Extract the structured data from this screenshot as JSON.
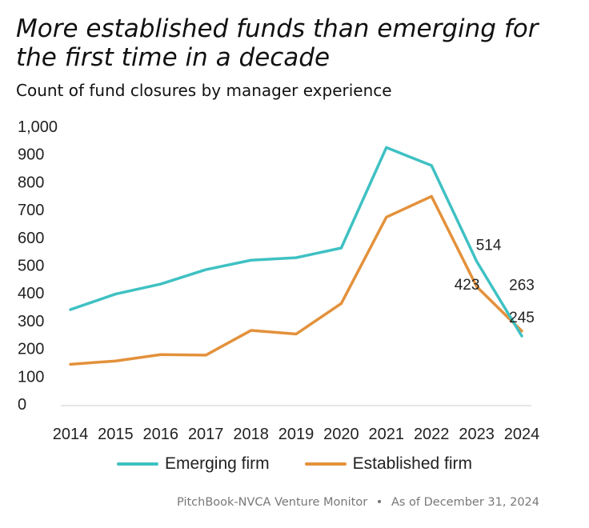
{
  "header": {
    "title": "More established funds than emerging for the first time in a decade",
    "subtitle": "Count of fund closures by manager experience"
  },
  "source": {
    "text": "PitchBook-NVCA Venture Monitor",
    "separator": "•",
    "date": "As of December 31, 2024"
  },
  "chart_data": {
    "type": "line",
    "title": "More established funds than emerging for the first time in a decade",
    "subtitle": "Count of fund closures by manager experience",
    "xlabel": "",
    "ylabel": "",
    "categories": [
      "2014",
      "2015",
      "2016",
      "2017",
      "2018",
      "2019",
      "2020",
      "2021",
      "2022",
      "2023",
      "2024"
    ],
    "ylim": [
      0,
      1000
    ],
    "yticks": [
      0,
      100,
      200,
      300,
      400,
      500,
      600,
      700,
      800,
      900,
      1000
    ],
    "ytick_labels": [
      "0",
      "100",
      "200",
      "300",
      "400",
      "500",
      "600",
      "700",
      "800",
      "900",
      "1,000"
    ],
    "grid": false,
    "legend_position": "bottom",
    "series": [
      {
        "name": "Emerging firm",
        "color": "#3fc1c3",
        "values": [
          340,
          396,
          432,
          484,
          518,
          527,
          562,
          924,
          859,
          514,
          245
        ]
      },
      {
        "name": "Established firm",
        "color": "#e3913b",
        "values": [
          143,
          155,
          178,
          176,
          265,
          252,
          362,
          673,
          748,
          423,
          263
        ]
      }
    ],
    "data_labels": [
      {
        "series": 0,
        "index": 9,
        "text": "514"
      },
      {
        "series": 1,
        "index": 9,
        "text": "423"
      },
      {
        "series": 1,
        "index": 10,
        "text": "263"
      },
      {
        "series": 0,
        "index": 10,
        "text": "245"
      }
    ]
  }
}
